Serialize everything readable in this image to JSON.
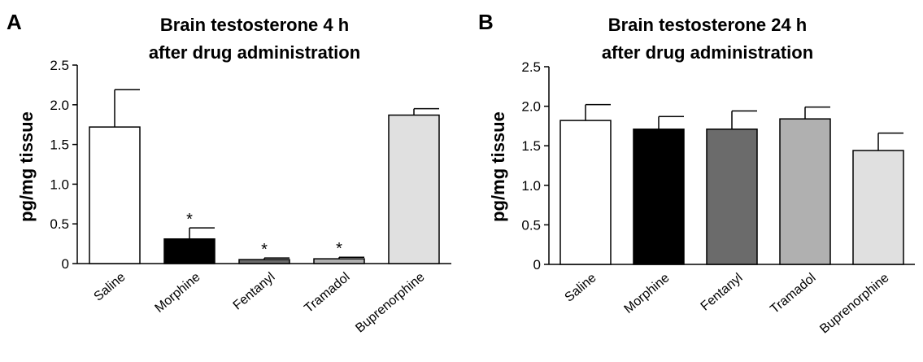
{
  "chart_data": [
    {
      "type": "bar",
      "panel": "A",
      "title_line1": "Brain testosterone 4 h",
      "title_line2": "after drug administration",
      "xlabel": "",
      "ylabel": "pg/mg tissue",
      "ylim": [
        0,
        2.5
      ],
      "yticks": [
        "0",
        "0.5",
        "1.0",
        "1.5",
        "2.0",
        "2.5"
      ],
      "categories": [
        "Saline",
        "Morphine",
        "Fentanyl",
        "Tramadol",
        "Buprenorphine"
      ],
      "values": [
        1.72,
        0.31,
        0.05,
        0.06,
        1.87
      ],
      "errors": [
        0.47,
        0.14,
        0.02,
        0.02,
        0.08
      ],
      "significance": [
        "",
        "*",
        "*",
        "*",
        ""
      ],
      "colors": [
        "#ffffff",
        "#000000",
        "#6b6b6b",
        "#b0b0b0",
        "#e0e0e0"
      ]
    },
    {
      "type": "bar",
      "panel": "B",
      "title_line1": "Brain testosterone 24 h",
      "title_line2": "after drug administration",
      "xlabel": "",
      "ylabel": "pg/mg tissue",
      "ylim": [
        0,
        2.5
      ],
      "yticks": [
        "0",
        "0.5",
        "1.0",
        "1.5",
        "2.0",
        "2.5"
      ],
      "categories": [
        "Saline",
        "Morphine",
        "Fentanyl",
        "Tramadol",
        "Buprenorphine"
      ],
      "values": [
        1.82,
        1.71,
        1.71,
        1.84,
        1.44
      ],
      "errors": [
        0.2,
        0.16,
        0.23,
        0.15,
        0.22
      ],
      "significance": [
        "",
        "",
        "",
        "",
        ""
      ],
      "colors": [
        "#ffffff",
        "#000000",
        "#6b6b6b",
        "#b0b0b0",
        "#e0e0e0"
      ]
    }
  ]
}
